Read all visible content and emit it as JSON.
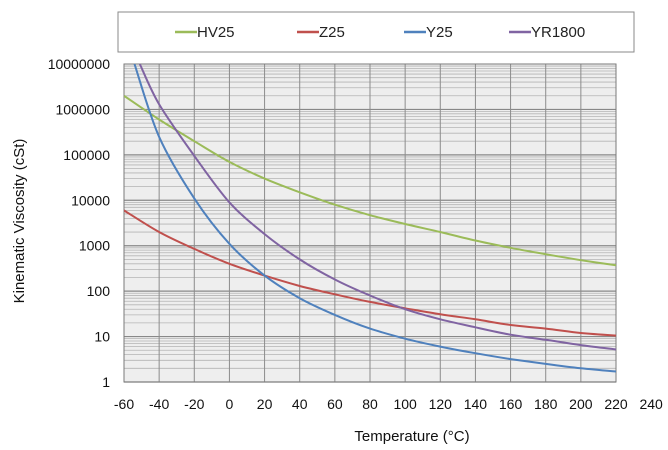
{
  "chart_data": {
    "type": "line",
    "title": "",
    "xlabel": "Temperature (°C)",
    "ylabel": "Kinematic Viscosity (cSt)",
    "xlim": [
      -60,
      240
    ],
    "ylim": [
      1,
      10000000
    ],
    "yscale": "log",
    "grid": true,
    "legend_position": "top",
    "x_ticks": [
      "-60",
      "-40",
      "-20",
      "0",
      "20",
      "40",
      "60",
      "80",
      "100",
      "120",
      "140",
      "160",
      "180",
      "200",
      "220",
      "240"
    ],
    "y_ticks": [
      "1",
      "10",
      "100",
      "1000",
      "10000",
      "100000",
      "1000000",
      "10000000"
    ],
    "series": [
      {
        "name": "HV25",
        "color": "#9bbb59",
        "points": [
          [
            -60,
            2000000
          ],
          [
            -40,
            600000
          ],
          [
            -20,
            200000
          ],
          [
            0,
            70000
          ],
          [
            20,
            30000
          ],
          [
            40,
            15000
          ],
          [
            60,
            8000
          ],
          [
            80,
            4700
          ],
          [
            100,
            3000
          ],
          [
            120,
            2000
          ],
          [
            140,
            1300
          ],
          [
            160,
            900
          ],
          [
            180,
            650
          ],
          [
            200,
            480
          ],
          [
            220,
            370
          ]
        ]
      },
      {
        "name": "Z25",
        "color": "#c0504d",
        "points": [
          [
            -60,
            6000
          ],
          [
            -40,
            2000
          ],
          [
            -20,
            850
          ],
          [
            0,
            400
          ],
          [
            20,
            220
          ],
          [
            40,
            130
          ],
          [
            60,
            85
          ],
          [
            80,
            58
          ],
          [
            100,
            42
          ],
          [
            120,
            31
          ],
          [
            140,
            24
          ],
          [
            160,
            18
          ],
          [
            180,
            15
          ],
          [
            200,
            12
          ],
          [
            220,
            10.5
          ]
        ]
      },
      {
        "name": "Y25",
        "color": "#4f81bd",
        "points": [
          [
            -54,
            10000000
          ],
          [
            -40,
            250000
          ],
          [
            -20,
            11000
          ],
          [
            0,
            1100
          ],
          [
            20,
            220
          ],
          [
            40,
            70
          ],
          [
            60,
            30
          ],
          [
            80,
            15
          ],
          [
            100,
            9
          ],
          [
            120,
            6
          ],
          [
            140,
            4.3
          ],
          [
            160,
            3.2
          ],
          [
            180,
            2.5
          ],
          [
            200,
            2
          ],
          [
            220,
            1.7
          ]
        ]
      },
      {
        "name": "YR1800",
        "color": "#8064a2",
        "points": [
          [
            -51,
            10000000
          ],
          [
            -40,
            1300000
          ],
          [
            -20,
            95000
          ],
          [
            0,
            9000
          ],
          [
            20,
            1800
          ],
          [
            40,
            500
          ],
          [
            60,
            180
          ],
          [
            80,
            80
          ],
          [
            100,
            40
          ],
          [
            120,
            24
          ],
          [
            140,
            16
          ],
          [
            160,
            11
          ],
          [
            180,
            8.5
          ],
          [
            200,
            6.5
          ],
          [
            220,
            5.2
          ]
        ]
      }
    ]
  }
}
